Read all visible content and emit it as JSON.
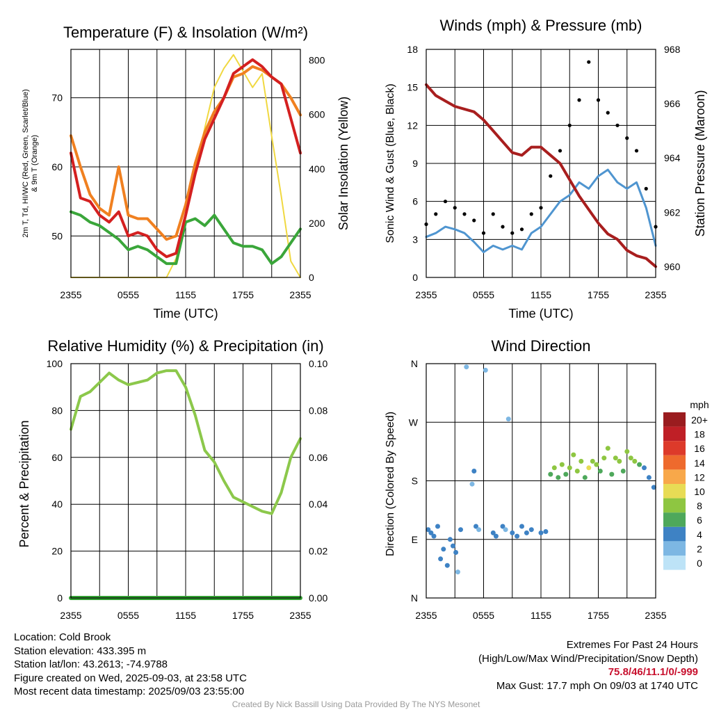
{
  "panels": {
    "temperature": {
      "title": "Temperature (F) & Insolation (W/m²)",
      "ylabel_left_line1": "2m T, Td, HI/WC (Red, Green, Scarlet/Blue)",
      "ylabel_left_line2": "& 9m T (Orange)",
      "ylabel_right": "Solar Insolation (Yellow)",
      "xlabel": "Time (UTC)"
    },
    "winds": {
      "title": "Winds (mph) & Pressure (mb)",
      "ylabel_left": "Sonic Wind & Gust (Blue, Black)",
      "ylabel_right": "Station Pressure (Maroon)",
      "xlabel": "Time (UTC)"
    },
    "humidity": {
      "title": "Relative Humidity (%) & Precipitation (in)",
      "ylabel_left": "Percent & Precipitation"
    },
    "direction": {
      "title": "Wind Direction",
      "ylabel_left": "Direction (Colored By Speed)",
      "legend_title": "mph"
    }
  },
  "info": {
    "location": "Location: Cold Brook",
    "elevation": "Station elevation: 433.395 m",
    "latlon": "Station lat/lon: 43.2613; -74.9788",
    "created": "Figure created on Wed, 2025-09-03, at 23:58 UTC",
    "recent": "Most recent data timestamp: 2025/09/03 23:55:00"
  },
  "extremes": {
    "title": "Extremes For Past 24 Hours",
    "subtitle": "(High/Low/Max Wind/Precipitation/Snow Depth)",
    "values": "75.8/46/11.1/0/-999",
    "gust": "Max Gust: 17.7 mph On 09/03 at 1740 UTC"
  },
  "credit": "Created By Nick Bassill Using Data Provided By The NYS Mesonet",
  "chart_data": [
    {
      "type": "line",
      "title": "Temperature (F) & Insolation (W/m²)",
      "xlabel": "Time (UTC)",
      "xticks": [
        "2355",
        "0555",
        "1155",
        "1755",
        "2355"
      ],
      "x_hours": [
        0,
        1,
        2,
        3,
        4,
        5,
        6,
        7,
        8,
        9,
        10,
        11,
        12,
        13,
        14,
        15,
        16,
        17,
        18,
        19,
        20,
        21,
        22,
        23,
        24
      ],
      "ylim": [
        44,
        77
      ],
      "yticks": [
        50,
        60,
        70
      ],
      "ylim_right": [
        0,
        840
      ],
      "yticks_right": [
        0,
        200,
        400,
        600,
        800
      ],
      "series": [
        {
          "name": "2m T",
          "color": "#d42020",
          "axis": "left",
          "values": [
            62,
            55.5,
            55,
            53,
            52,
            53.5,
            50,
            50.5,
            50,
            48,
            47,
            47.5,
            53,
            59,
            64,
            67,
            70,
            73.5,
            74.5,
            75.5,
            74.5,
            73,
            72,
            67,
            62
          ]
        },
        {
          "name": "2m Td",
          "color": "#3aa63a",
          "axis": "left",
          "values": [
            53.5,
            53,
            52,
            51.5,
            50.5,
            49.5,
            48,
            48.5,
            48,
            47,
            46,
            46,
            52,
            52.5,
            51.5,
            53,
            51,
            49,
            48.5,
            48.5,
            48,
            46,
            47,
            49,
            51
          ]
        },
        {
          "name": "9m T",
          "color": "#f08020",
          "axis": "left",
          "values": [
            64.5,
            60,
            56,
            54,
            53,
            60,
            53,
            52.5,
            52.5,
            51,
            49.5,
            50,
            54.5,
            60.5,
            65,
            68,
            70,
            73,
            73.5,
            74.5,
            74,
            73,
            72,
            70,
            67.5
          ]
        },
        {
          "name": "Solar Insolation",
          "color": "#f0d840",
          "axis": "right",
          "values": [
            0,
            0,
            0,
            0,
            0,
            0,
            0,
            0,
            0,
            0,
            0,
            70,
            220,
            390,
            550,
            700,
            770,
            820,
            760,
            700,
            750,
            520,
            300,
            60,
            0
          ]
        }
      ]
    },
    {
      "type": "line",
      "title": "Winds (mph) & Pressure (mb)",
      "xlabel": "Time (UTC)",
      "xticks": [
        "2355",
        "0555",
        "1155",
        "1755",
        "2355"
      ],
      "x_hours": [
        0,
        1,
        2,
        3,
        4,
        5,
        6,
        7,
        8,
        9,
        10,
        11,
        12,
        13,
        14,
        15,
        16,
        17,
        18,
        19,
        20,
        21,
        22,
        23,
        24
      ],
      "ylim": [
        0,
        18
      ],
      "yticks": [
        0,
        3,
        6,
        9,
        12,
        15,
        18
      ],
      "ylim_right": [
        959.6,
        968
      ],
      "yticks_right": [
        960,
        962,
        964,
        966,
        968
      ],
      "series": [
        {
          "name": "Sonic Wind",
          "color": "#4f95d0",
          "axis": "left",
          "values": [
            3.2,
            3.5,
            4,
            3.8,
            3.5,
            2.8,
            2,
            2.5,
            2.2,
            2.5,
            2.2,
            3.5,
            4,
            5,
            6,
            6.5,
            7.5,
            7,
            8,
            8.5,
            7.5,
            7,
            7.5,
            5.5,
            2.5
          ]
        },
        {
          "name": "Gust",
          "color": "#000000",
          "axis": "left",
          "values": [
            4.2,
            5,
            6,
            5.5,
            5,
            4.5,
            3.5,
            5,
            4,
            3.5,
            3.8,
            5,
            5.5,
            8,
            10,
            12,
            14,
            17,
            14,
            13,
            12,
            11,
            10,
            7,
            4
          ]
        },
        {
          "name": "Station Pressure",
          "color": "#a81e1e",
          "axis": "right",
          "values": [
            966.7,
            966.3,
            966.1,
            965.9,
            965.8,
            965.7,
            965.4,
            965,
            964.6,
            964.2,
            964.1,
            964.4,
            964.4,
            964.1,
            963.8,
            963.2,
            962.6,
            962.1,
            961.6,
            961.2,
            961,
            960.6,
            960.4,
            960.3,
            960
          ]
        }
      ]
    },
    {
      "type": "line",
      "title": "Relative Humidity (%) & Precipitation (in)",
      "xticks": [
        "2355",
        "0555",
        "1155",
        "1755",
        "2355"
      ],
      "x_hours": [
        0,
        1,
        2,
        3,
        4,
        5,
        6,
        7,
        8,
        9,
        10,
        11,
        12,
        13,
        14,
        15,
        16,
        17,
        18,
        19,
        20,
        21,
        22,
        23,
        24
      ],
      "ylim": [
        0,
        100
      ],
      "yticks": [
        0,
        20,
        40,
        60,
        80,
        100
      ],
      "ylim_right": [
        0,
        0.1
      ],
      "yticks_right": [
        0.0,
        0.02,
        0.04,
        0.06,
        0.08,
        0.1
      ],
      "series": [
        {
          "name": "Relative Humidity",
          "color": "#8cc84b",
          "axis": "left",
          "values": [
            72,
            86,
            88,
            92,
            96,
            93,
            91,
            92,
            93,
            96,
            97,
            97,
            90,
            78,
            63,
            58,
            50,
            43,
            41,
            39,
            37,
            36,
            45,
            60,
            68
          ]
        },
        {
          "name": "Precipitation",
          "color": "#33a133",
          "axis": "right",
          "values": [
            0,
            0,
            0,
            0,
            0,
            0,
            0,
            0,
            0,
            0,
            0,
            0,
            0,
            0,
            0,
            0,
            0,
            0,
            0,
            0,
            0,
            0,
            0,
            0,
            0
          ]
        }
      ]
    },
    {
      "type": "scatter",
      "title": "Wind Direction",
      "xticks": [
        "2355",
        "0555",
        "1155",
        "1755",
        "2355"
      ],
      "yticks": [
        "N",
        "E",
        "S",
        "W",
        "N"
      ],
      "ylim": [
        0,
        360
      ],
      "legend": {
        "title": "mph",
        "labels": [
          "20+",
          "18",
          "16",
          "14",
          "12",
          "10",
          "8",
          "6",
          "4",
          "2",
          "0"
        ],
        "colors": [
          "#9a1c1f",
          "#bf1f26",
          "#dd3a2a",
          "#ee6a2d",
          "#f8a84a",
          "#e8dc55",
          "#8ec641",
          "#4ea85b",
          "#3e82c4",
          "#7db7e3",
          "#bde3f7"
        ]
      },
      "points": [
        {
          "x": 0.2,
          "dir": 105,
          "speed": 4
        },
        {
          "x": 0.5,
          "dir": 100,
          "speed": 3
        },
        {
          "x": 0.8,
          "dir": 95,
          "speed": 4
        },
        {
          "x": 1.2,
          "dir": 110,
          "speed": 3
        },
        {
          "x": 1.5,
          "dir": 60,
          "speed": 4
        },
        {
          "x": 1.8,
          "dir": 75,
          "speed": 3
        },
        {
          "x": 2.2,
          "dir": 50,
          "speed": 4
        },
        {
          "x": 2.5,
          "dir": 90,
          "speed": 3
        },
        {
          "x": 2.8,
          "dir": 80,
          "speed": 4
        },
        {
          "x": 3.1,
          "dir": 70,
          "speed": 3
        },
        {
          "x": 3.3,
          "dir": 40,
          "speed": 1
        },
        {
          "x": 3.6,
          "dir": 105,
          "speed": 3
        },
        {
          "x": 4.2,
          "dir": 355,
          "speed": 1
        },
        {
          "x": 4.8,
          "dir": 175,
          "speed": 2
        },
        {
          "x": 5.0,
          "dir": 195,
          "speed": 4
        },
        {
          "x": 5.2,
          "dir": 110,
          "speed": 3
        },
        {
          "x": 5.5,
          "dir": 105,
          "speed": 2
        },
        {
          "x": 6.2,
          "dir": 350,
          "speed": 1
        },
        {
          "x": 7.0,
          "dir": 100,
          "speed": 4
        },
        {
          "x": 7.3,
          "dir": 95,
          "speed": 3
        },
        {
          "x": 8.0,
          "dir": 110,
          "speed": 3
        },
        {
          "x": 8.3,
          "dir": 105,
          "speed": 2
        },
        {
          "x": 8.6,
          "dir": 275,
          "speed": 1
        },
        {
          "x": 9.0,
          "dir": 100,
          "speed": 3
        },
        {
          "x": 9.5,
          "dir": 95,
          "speed": 4
        },
        {
          "x": 10.0,
          "dir": 110,
          "speed": 4
        },
        {
          "x": 10.5,
          "dir": 100,
          "speed": 3
        },
        {
          "x": 11.0,
          "dir": 105,
          "speed": 3
        },
        {
          "x": 12.0,
          "dir": 100,
          "speed": 4
        },
        {
          "x": 12.5,
          "dir": 102,
          "speed": 4
        },
        {
          "x": 13.0,
          "dir": 190,
          "speed": 6
        },
        {
          "x": 13.4,
          "dir": 200,
          "speed": 7
        },
        {
          "x": 13.8,
          "dir": 185,
          "speed": 6
        },
        {
          "x": 14.2,
          "dir": 205,
          "speed": 8
        },
        {
          "x": 14.6,
          "dir": 190,
          "speed": 6
        },
        {
          "x": 15.0,
          "dir": 200,
          "speed": 7
        },
        {
          "x": 15.4,
          "dir": 220,
          "speed": 7
        },
        {
          "x": 15.8,
          "dir": 195,
          "speed": 8
        },
        {
          "x": 16.2,
          "dir": 210,
          "speed": 8
        },
        {
          "x": 16.6,
          "dir": 185,
          "speed": 6
        },
        {
          "x": 17.0,
          "dir": 200,
          "speed": 10
        },
        {
          "x": 17.4,
          "dir": 210,
          "speed": 8
        },
        {
          "x": 17.8,
          "dir": 205,
          "speed": 8
        },
        {
          "x": 18.2,
          "dir": 195,
          "speed": 6
        },
        {
          "x": 18.6,
          "dir": 215,
          "speed": 7
        },
        {
          "x": 19.0,
          "dir": 230,
          "speed": 7
        },
        {
          "x": 19.4,
          "dir": 190,
          "speed": 6
        },
        {
          "x": 19.8,
          "dir": 215,
          "speed": 8
        },
        {
          "x": 20.2,
          "dir": 210,
          "speed": 8
        },
        {
          "x": 20.6,
          "dir": 195,
          "speed": 6
        },
        {
          "x": 21.0,
          "dir": 225,
          "speed": 8
        },
        {
          "x": 21.4,
          "dir": 215,
          "speed": 7
        },
        {
          "x": 21.8,
          "dir": 210,
          "speed": 8
        },
        {
          "x": 22.3,
          "dir": 205,
          "speed": 6
        },
        {
          "x": 22.8,
          "dir": 200,
          "speed": 4
        },
        {
          "x": 23.3,
          "dir": 185,
          "speed": 3
        },
        {
          "x": 23.8,
          "dir": 170,
          "speed": 3
        }
      ]
    }
  ]
}
